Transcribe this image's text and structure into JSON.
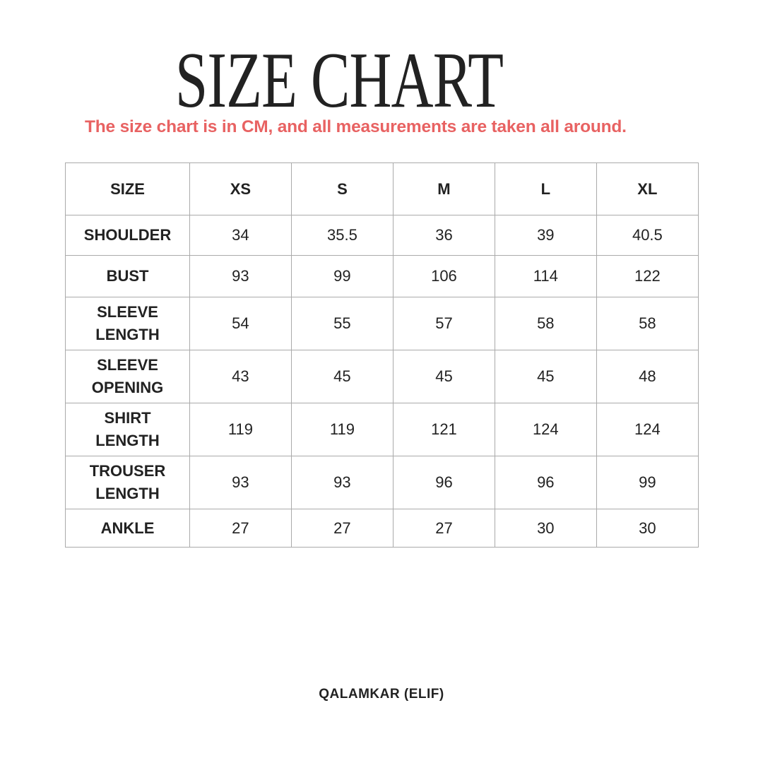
{
  "title": "SIZE CHART",
  "subtitle": "The size chart is in CM, and all measurements are taken all around.",
  "colors": {
    "subtitle": "#e86262",
    "text": "#222222",
    "border": "#aaaaaa"
  },
  "table": {
    "headers": [
      "SIZE",
      "XS",
      "S",
      "M",
      "L",
      "XL"
    ],
    "rows": [
      {
        "label": "SHOULDER",
        "values": [
          "34",
          "35.5",
          "36",
          "39",
          "40.5"
        ]
      },
      {
        "label": "BUST",
        "values": [
          "93",
          "99",
          "106",
          "114",
          "122"
        ]
      },
      {
        "label": "SLEEVE LENGTH",
        "values": [
          "54",
          "55",
          "57",
          "58",
          "58"
        ]
      },
      {
        "label": "SLEEVE OPENING",
        "values": [
          "43",
          "45",
          "45",
          "45",
          "48"
        ]
      },
      {
        "label": "SHIRT LENGTH",
        "values": [
          "119",
          "119",
          "121",
          "124",
          "124"
        ]
      },
      {
        "label": "TROUSER LENGTH",
        "values": [
          "93",
          "93",
          "96",
          "96",
          "99"
        ]
      },
      {
        "label": "ANKLE",
        "values": [
          "27",
          "27",
          "27",
          "30",
          "30"
        ]
      }
    ]
  },
  "footer": "QALAMKAR (ELIF)"
}
